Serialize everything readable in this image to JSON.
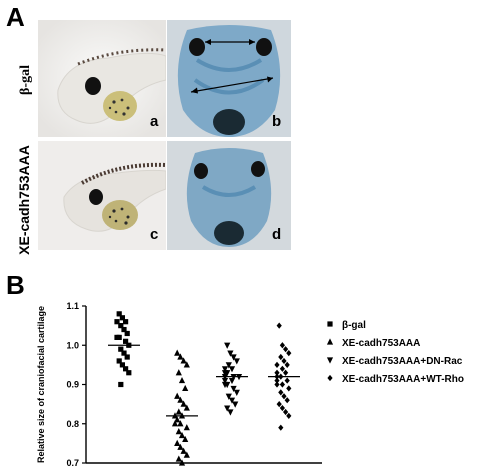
{
  "panel_a": {
    "letter": "A",
    "row_labels": [
      "β-gal",
      "XE-cadh753AAA"
    ],
    "subpanels": [
      "a",
      "b",
      "c",
      "d"
    ]
  },
  "panel_b": {
    "letter": "B"
  },
  "chart_data": {
    "type": "scatter",
    "ylabel": "Relative size of craniofacial cartilage",
    "ylim": [
      0.7,
      1.1
    ],
    "yticks": [
      "0.7",
      "0.8",
      "0.9",
      "1.0",
      "1.1"
    ],
    "legend_position": "right",
    "series": [
      {
        "name": "β-gal",
        "marker": "square",
        "values": [
          1.08,
          1.07,
          1.06,
          1.06,
          1.05,
          1.04,
          1.03,
          1.02,
          1.02,
          1.01,
          1.0,
          0.99,
          0.98,
          0.97,
          0.96,
          0.95,
          0.94,
          0.93,
          0.9
        ],
        "median": 1.0
      },
      {
        "name": "XE-cadh753AAA",
        "marker": "triangle-up",
        "values": [
          0.98,
          0.97,
          0.96,
          0.95,
          0.93,
          0.91,
          0.89,
          0.87,
          0.86,
          0.85,
          0.84,
          0.83,
          0.82,
          0.82,
          0.81,
          0.8,
          0.8,
          0.79,
          0.78,
          0.77,
          0.76,
          0.75,
          0.74,
          0.73,
          0.72,
          0.71,
          0.7
        ],
        "median": 0.82
      },
      {
        "name": "XE-cadh753AAA+DN-Rac",
        "marker": "triangle-down",
        "values": [
          1.0,
          0.98,
          0.97,
          0.96,
          0.95,
          0.94,
          0.94,
          0.93,
          0.93,
          0.92,
          0.92,
          0.92,
          0.91,
          0.91,
          0.9,
          0.9,
          0.89,
          0.88,
          0.87,
          0.86,
          0.85,
          0.84,
          0.83
        ],
        "median": 0.92
      },
      {
        "name": "XE-cadh753AAA+WT-Rho",
        "marker": "diamond",
        "values": [
          1.05,
          1.0,
          0.99,
          0.98,
          0.97,
          0.96,
          0.95,
          0.95,
          0.94,
          0.93,
          0.93,
          0.92,
          0.92,
          0.91,
          0.91,
          0.9,
          0.9,
          0.89,
          0.88,
          0.87,
          0.86,
          0.85,
          0.84,
          0.83,
          0.82,
          0.79
        ],
        "median": 0.92
      }
    ]
  }
}
